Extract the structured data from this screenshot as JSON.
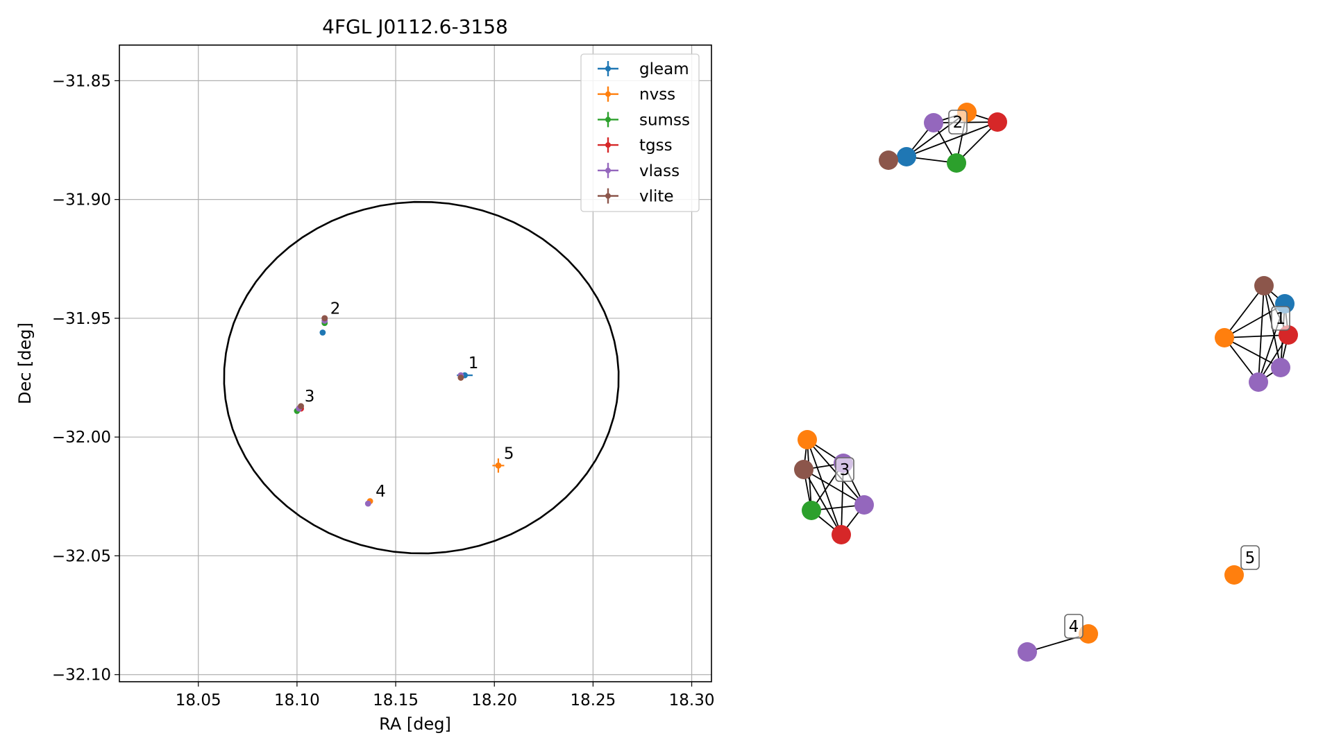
{
  "chart_data": [
    {
      "type": "scatter",
      "title": "4FGL J0112.6-3158",
      "xlabel": "RA [deg]",
      "ylabel": "Dec [deg]",
      "xlim": [
        18.01,
        18.31
      ],
      "ylim": [
        -32.103,
        -31.835
      ],
      "xticks": [
        18.05,
        18.1,
        18.15,
        18.2,
        18.25,
        18.3
      ],
      "xtick_labels": [
        "18.05",
        "18.10",
        "18.15",
        "18.20",
        "18.25",
        "18.30"
      ],
      "yticks": [
        -31.85,
        -31.9,
        -31.95,
        -32.0,
        -32.05,
        -32.1
      ],
      "ytick_labels": [
        "−31.85",
        "−31.90",
        "−31.95",
        "−32.00",
        "−32.05",
        "−32.10"
      ],
      "grid": true,
      "legend_position": "top-right",
      "ellipse": {
        "center": [
          18.163,
          -31.975
        ],
        "semi_axis_ra": 0.1,
        "semi_axis_dec": 0.074,
        "rotation_deg": -8,
        "color": "#000000"
      },
      "series": [
        {
          "name": "gleam",
          "color": "#1f77b4",
          "points": [
            {
              "x": 18.185,
              "y": -31.974,
              "xerr": 0.004,
              "yerr": 0.0012
            },
            {
              "x": 18.113,
              "y": -31.956,
              "xerr": 0.0,
              "yerr": 0.0
            }
          ]
        },
        {
          "name": "nvss",
          "color": "#ff7f0e",
          "points": [
            {
              "x": 18.183,
              "y": -31.975,
              "xerr": 0.0,
              "yerr": 0.0
            },
            {
              "x": 18.114,
              "y": -31.951,
              "xerr": 0.0,
              "yerr": 0.0
            },
            {
              "x": 18.101,
              "y": -31.988,
              "xerr": 0.0,
              "yerr": 0.0
            },
            {
              "x": 18.137,
              "y": -32.027,
              "xerr": 0.0,
              "yerr": 0.0
            },
            {
              "x": 18.202,
              "y": -32.012,
              "xerr": 0.003,
              "yerr": 0.003
            }
          ]
        },
        {
          "name": "sumss",
          "color": "#2ca02c",
          "points": [
            {
              "x": 18.114,
              "y": -31.952,
              "xerr": 0.0,
              "yerr": 0.0
            },
            {
              "x": 18.1,
              "y": -31.989,
              "xerr": 0.0,
              "yerr": 0.0
            }
          ]
        },
        {
          "name": "tgss",
          "color": "#d62728",
          "points": [
            {
              "x": 18.114,
              "y": -31.95,
              "xerr": 0.0,
              "yerr": 0.0
            },
            {
              "x": 18.102,
              "y": -31.988,
              "xerr": 0.0,
              "yerr": 0.0
            }
          ]
        },
        {
          "name": "vlass",
          "color": "#9467bd",
          "points": [
            {
              "x": 18.183,
              "y": -31.974,
              "xerr": 0.0,
              "yerr": 0.0
            },
            {
              "x": 18.114,
              "y": -31.951,
              "xerr": 0.0,
              "yerr": 0.0
            },
            {
              "x": 18.101,
              "y": -31.988,
              "xerr": 0.0,
              "yerr": 0.0
            },
            {
              "x": 18.136,
              "y": -32.028,
              "xerr": 0.0,
              "yerr": 0.0
            }
          ]
        },
        {
          "name": "vlite",
          "color": "#8c564b",
          "points": [
            {
              "x": 18.183,
              "y": -31.975,
              "xerr": 0.0,
              "yerr": 0.0
            },
            {
              "x": 18.114,
              "y": -31.95,
              "xerr": 0.0,
              "yerr": 0.0
            },
            {
              "x": 18.102,
              "y": -31.987,
              "xerr": 0.0,
              "yerr": 0.0
            }
          ]
        }
      ],
      "annotations": [
        {
          "text": "1",
          "x": 18.184,
          "y": -31.974
        },
        {
          "text": "2",
          "x": 18.114,
          "y": -31.951
        },
        {
          "text": "3",
          "x": 18.101,
          "y": -31.988
        },
        {
          "text": "4",
          "x": 18.137,
          "y": -32.028
        },
        {
          "text": "5",
          "x": 18.202,
          "y": -32.012
        }
      ]
    },
    {
      "type": "network",
      "node_colors": {
        "gleam": "#1f77b4",
        "nvss": "#ff7f0e",
        "sumss": "#2ca02c",
        "tgss": "#d62728",
        "vlass": "#9467bd",
        "vlite": "#8c564b"
      },
      "clusters": [
        {
          "label": "1",
          "nodes": [
            {
              "id": "vlite",
              "catalog": "vlite"
            },
            {
              "id": "gleam",
              "catalog": "gleam"
            },
            {
              "id": "tgss",
              "catalog": "tgss"
            },
            {
              "id": "vlass_a",
              "catalog": "vlass"
            },
            {
              "id": "vlass_b",
              "catalog": "vlass"
            },
            {
              "id": "nvss",
              "catalog": "nvss"
            }
          ],
          "edges": "complete"
        },
        {
          "label": "2",
          "nodes": [
            {
              "id": "vlass",
              "catalog": "vlass"
            },
            {
              "id": "nvss",
              "catalog": "nvss"
            },
            {
              "id": "tgss",
              "catalog": "tgss"
            },
            {
              "id": "gleam",
              "catalog": "gleam"
            },
            {
              "id": "vlite",
              "catalog": "vlite"
            },
            {
              "id": "sumss",
              "catalog": "sumss"
            }
          ],
          "edges": [
            [
              "vlite",
              "gleam"
            ],
            [
              "gleam",
              "vlass"
            ],
            [
              "gleam",
              "nvss"
            ],
            [
              "gleam",
              "sumss"
            ],
            [
              "vlass",
              "nvss"
            ],
            [
              "vlass",
              "tgss"
            ],
            [
              "vlass",
              "sumss"
            ],
            [
              "nvss",
              "tgss"
            ],
            [
              "nvss",
              "sumss"
            ],
            [
              "tgss",
              "sumss"
            ],
            [
              "gleam",
              "tgss"
            ]
          ]
        },
        {
          "label": "3",
          "nodes": [
            {
              "id": "nvss",
              "catalog": "nvss"
            },
            {
              "id": "vlass_a",
              "catalog": "vlass"
            },
            {
              "id": "vlite",
              "catalog": "vlite"
            },
            {
              "id": "vlass_b",
              "catalog": "vlass"
            },
            {
              "id": "sumss",
              "catalog": "sumss"
            },
            {
              "id": "tgss",
              "catalog": "tgss"
            }
          ],
          "edges": "complete"
        },
        {
          "label": "4",
          "nodes": [
            {
              "id": "vlass",
              "catalog": "vlass"
            },
            {
              "id": "nvss",
              "catalog": "nvss"
            }
          ],
          "edges": [
            [
              "vlass",
              "nvss"
            ]
          ]
        },
        {
          "label": "5",
          "nodes": [
            {
              "id": "nvss",
              "catalog": "nvss"
            }
          ],
          "edges": []
        }
      ]
    }
  ]
}
